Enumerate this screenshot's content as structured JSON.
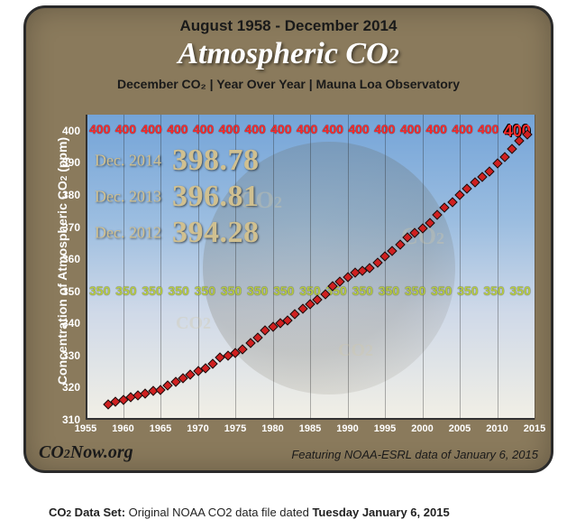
{
  "header": {
    "range": "August 1958 - December 2014",
    "title_pre": "Atmospheric C",
    "title_o": "O",
    "title_2": "2",
    "subtitle": "December CO₂  |  Year Over Year  |  Mauna Loa Observatory"
  },
  "chart": {
    "type": "scatter-line",
    "ylabel_pre": "Concentration of  Atmospheric CO",
    "ylabel_2": "2",
    "ylabel_unit": " (ppm)",
    "xlim": [
      1955,
      2015
    ],
    "ylim": [
      310,
      405
    ],
    "yticks": [
      310,
      320,
      330,
      340,
      350,
      360,
      370,
      380,
      390,
      400
    ],
    "xticks": [
      1955,
      1960,
      1965,
      1970,
      1975,
      1980,
      1985,
      1990,
      1995,
      2000,
      2005,
      2010,
      2015
    ],
    "band400_value": "400",
    "band350_value": "350",
    "marker_color": "#d02020",
    "marker_border": "#111111",
    "grid_color": "rgba(40,40,40,0.35)",
    "bg_gradient": [
      "#74a4d8",
      "#9bbde0",
      "#cfd9e8",
      "#f1efe6"
    ],
    "points": [
      {
        "x": 1958,
        "y": 314.7
      },
      {
        "x": 1959,
        "y": 315.6
      },
      {
        "x": 1960,
        "y": 316.2
      },
      {
        "x": 1961,
        "y": 316.9
      },
      {
        "x": 1962,
        "y": 317.7
      },
      {
        "x": 1963,
        "y": 318.2
      },
      {
        "x": 1964,
        "y": 318.9
      },
      {
        "x": 1965,
        "y": 319.4
      },
      {
        "x": 1966,
        "y": 320.6
      },
      {
        "x": 1967,
        "y": 321.8
      },
      {
        "x": 1968,
        "y": 322.8
      },
      {
        "x": 1969,
        "y": 324.0
      },
      {
        "x": 1970,
        "y": 325.1
      },
      {
        "x": 1971,
        "y": 326.0
      },
      {
        "x": 1972,
        "y": 327.5
      },
      {
        "x": 1973,
        "y": 329.5
      },
      {
        "x": 1974,
        "y": 330.0
      },
      {
        "x": 1975,
        "y": 330.7
      },
      {
        "x": 1976,
        "y": 332.0
      },
      {
        "x": 1977,
        "y": 334.0
      },
      {
        "x": 1978,
        "y": 335.5
      },
      {
        "x": 1979,
        "y": 337.9
      },
      {
        "x": 1980,
        "y": 339.0
      },
      {
        "x": 1981,
        "y": 340.0
      },
      {
        "x": 1982,
        "y": 341.0
      },
      {
        "x": 1983,
        "y": 343.0
      },
      {
        "x": 1984,
        "y": 344.7
      },
      {
        "x": 1985,
        "y": 346.1
      },
      {
        "x": 1986,
        "y": 347.4
      },
      {
        "x": 1987,
        "y": 349.2
      },
      {
        "x": 1988,
        "y": 351.6
      },
      {
        "x": 1989,
        "y": 353.1
      },
      {
        "x": 1990,
        "y": 354.4
      },
      {
        "x": 1991,
        "y": 355.7
      },
      {
        "x": 1992,
        "y": 356.4
      },
      {
        "x": 1993,
        "y": 357.2
      },
      {
        "x": 1994,
        "y": 358.9
      },
      {
        "x": 1995,
        "y": 360.8
      },
      {
        "x": 1996,
        "y": 362.6
      },
      {
        "x": 1997,
        "y": 364.4
      },
      {
        "x": 1998,
        "y": 366.9
      },
      {
        "x": 1999,
        "y": 368.3
      },
      {
        "x": 2000,
        "y": 369.7
      },
      {
        "x": 2001,
        "y": 371.2
      },
      {
        "x": 2002,
        "y": 373.8
      },
      {
        "x": 2003,
        "y": 376.0
      },
      {
        "x": 2004,
        "y": 377.7
      },
      {
        "x": 2005,
        "y": 380.1
      },
      {
        "x": 2006,
        "y": 382.0
      },
      {
        "x": 2007,
        "y": 384.0
      },
      {
        "x": 2008,
        "y": 385.6
      },
      {
        "x": 2009,
        "y": 387.4
      },
      {
        "x": 2010,
        "y": 389.9
      },
      {
        "x": 2011,
        "y": 391.8
      },
      {
        "x": 2012,
        "y": 394.28
      },
      {
        "x": 2013,
        "y": 396.81
      },
      {
        "x": 2014,
        "y": 398.78
      }
    ],
    "callouts": [
      {
        "label": "Dec. 2014",
        "value": "398.78"
      },
      {
        "label": "Dec. 2013",
        "value": "396.81"
      },
      {
        "label": "Dec. 2012",
        "value": "394.28"
      }
    ]
  },
  "footer": {
    "brand_pre": "CO",
    "brand_2": "2",
    "brand_post": "Now.org",
    "credit": "Featuring NOAA-ESRL data of January 6, 2015"
  },
  "caption": {
    "label_pre": "CO",
    "label_2": "2",
    "label_post": " Data Set:",
    "text": "  Original NOAA CO2 data file dated  ",
    "date": "Tuesday January 6, 2015"
  }
}
